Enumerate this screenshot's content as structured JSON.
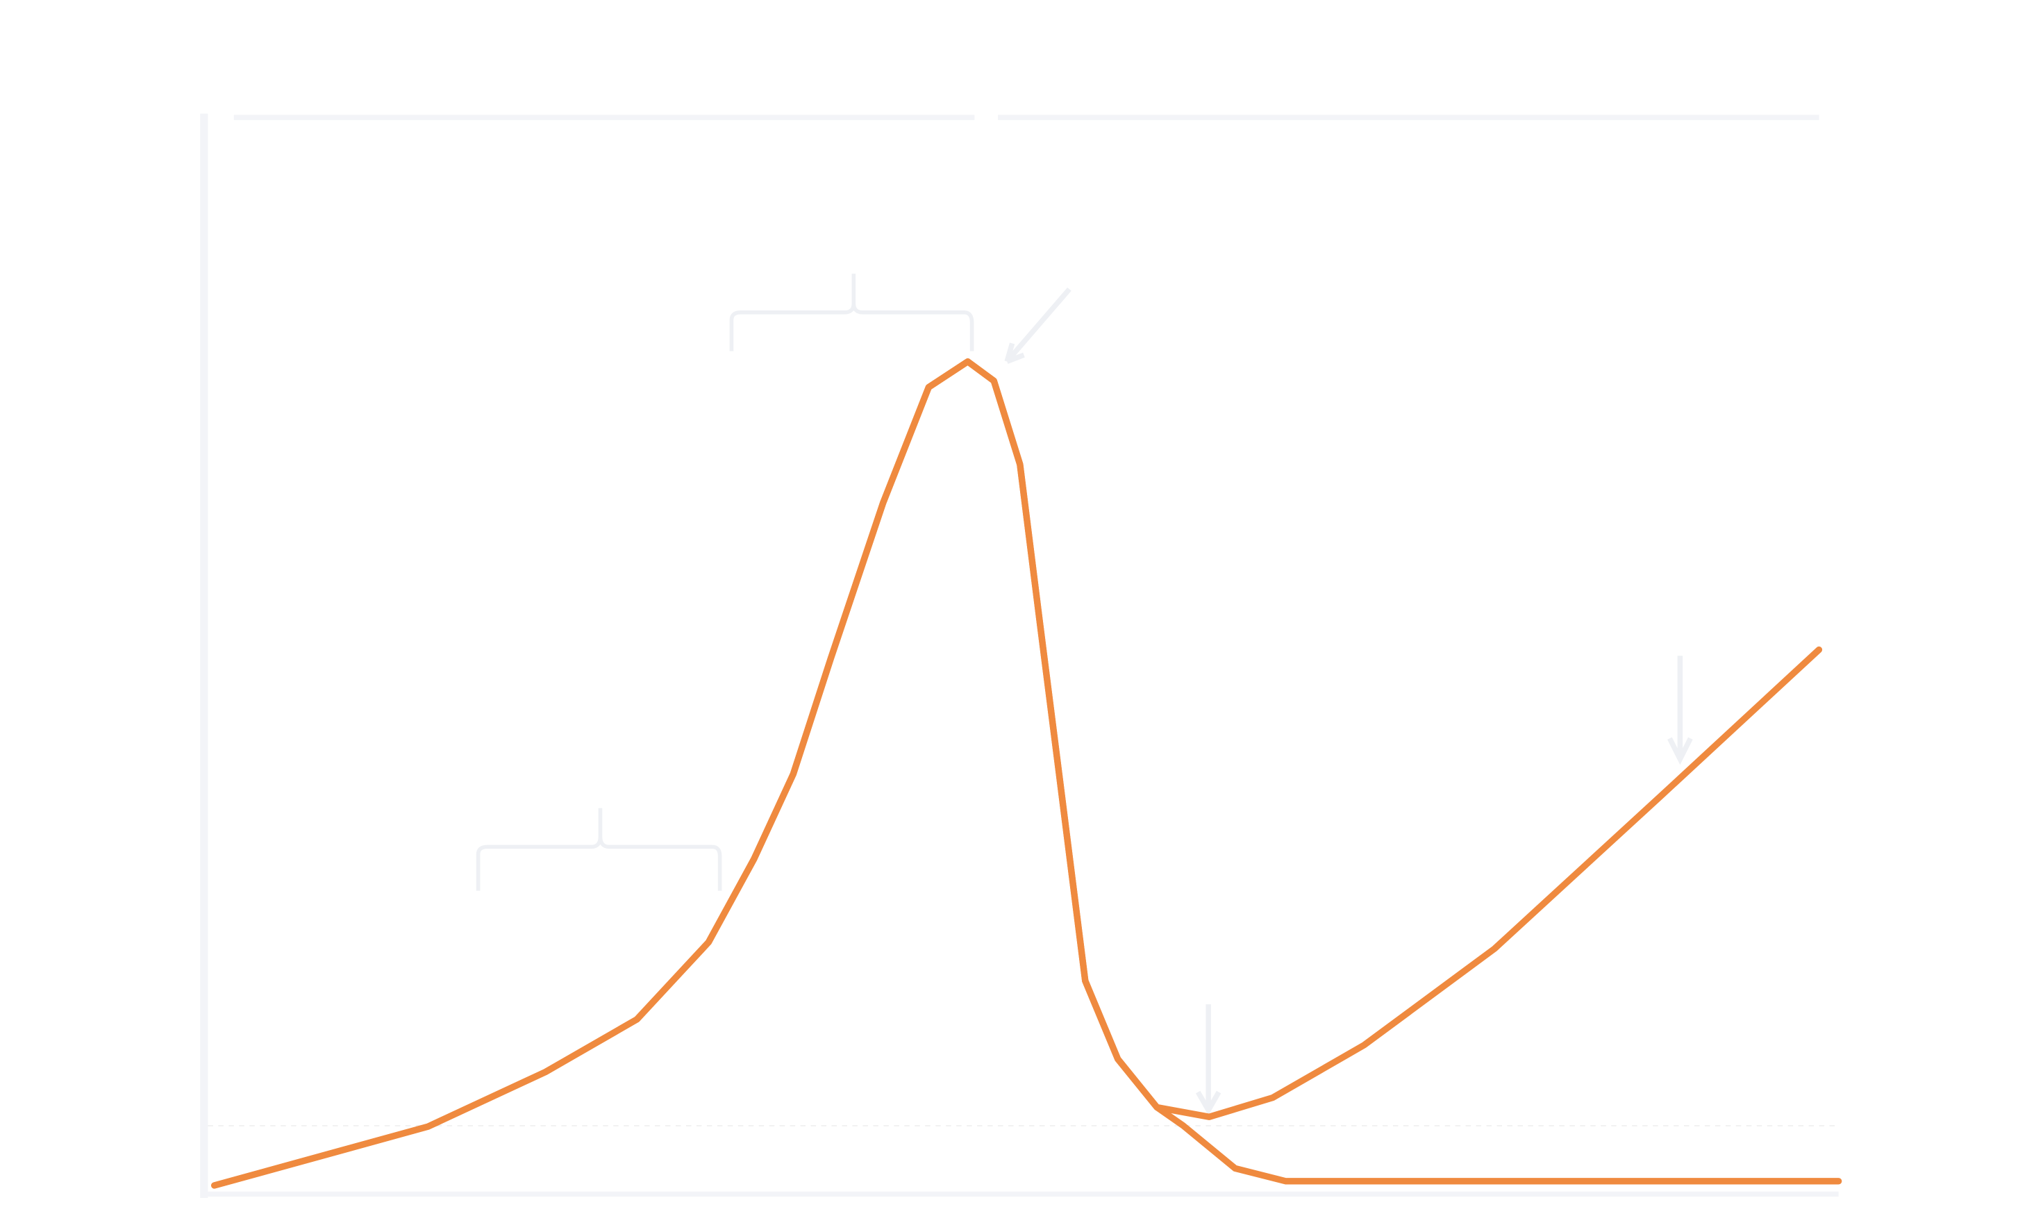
{
  "chart_data": {
    "type": "line",
    "xlim": [
      0,
      100
    ],
    "ylim": [
      0,
      100
    ],
    "series": [
      {
        "color": "#ef8a3f",
        "x": [
          0.4,
          13.5,
          20.7,
          26.3,
          30.7,
          33.5,
          35.9,
          38.2,
          41.4,
          44.2,
          46.6,
          48.2,
          49.8,
          51.0,
          52.2,
          53.8,
          55.8,
          58.2,
          61.4,
          65.3,
          70.9,
          78.9,
          89.2,
          98.8
        ],
        "values": [
          0.2,
          5.7,
          10.8,
          15.7,
          22.9,
          30.7,
          38.6,
          49.4,
          63.9,
          74.7,
          77.1,
          75.3,
          67.5,
          53.0,
          38.6,
          19.3,
          12.0,
          7.5,
          6.6,
          8.4,
          13.3,
          22.3,
          36.7,
          50.2
        ]
      },
      {
        "color": "#ef8a3f",
        "x": [
          0.4,
          13.5,
          20.7,
          26.3,
          30.7,
          33.5,
          35.9,
          38.2,
          41.4,
          44.2,
          46.6,
          48.2,
          49.8,
          51.0,
          52.2,
          53.8,
          55.8,
          58.2,
          59.8,
          63.0,
          66.1,
          100
        ],
        "values": [
          0.2,
          5.7,
          10.8,
          15.7,
          22.9,
          30.7,
          38.6,
          49.4,
          63.9,
          74.7,
          77.1,
          75.3,
          67.5,
          53.0,
          38.6,
          19.3,
          12.0,
          7.5,
          5.8,
          1.8,
          0.6,
          0.6
        ]
      }
    ]
  }
}
